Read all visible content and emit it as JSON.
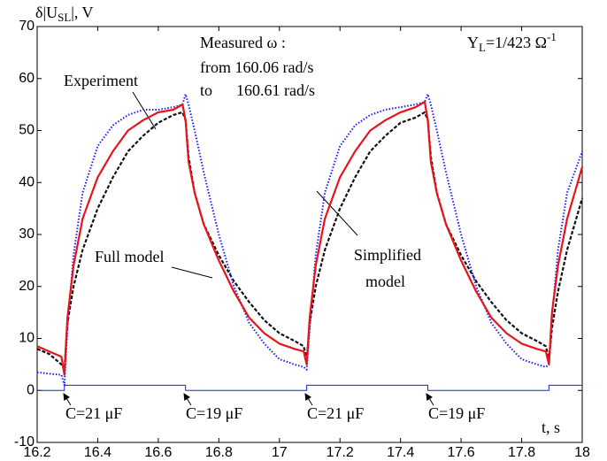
{
  "chart_data": {
    "type": "line",
    "y_label": [
      "δ|U",
      "SL",
      "|, V"
    ],
    "x_label": "t, s",
    "xlim": [
      16.2,
      18
    ],
    "ylim": [
      -10,
      70
    ],
    "xticks": [
      16.2,
      16.4,
      16.6,
      16.8,
      17,
      17.2,
      17.4,
      17.6,
      17.8,
      18
    ],
    "yticks": [
      -10,
      0,
      10,
      20,
      30,
      40,
      50,
      60,
      70
    ],
    "x": [
      16.2,
      16.24,
      16.28,
      16.29,
      16.3,
      16.32,
      16.35,
      16.4,
      16.45,
      16.5,
      16.55,
      16.6,
      16.65,
      16.68,
      16.69,
      16.7,
      16.72,
      16.75,
      16.8,
      16.85,
      16.9,
      16.95,
      17.0,
      17.05,
      17.08,
      17.09,
      17.1,
      17.12,
      17.15,
      17.2,
      17.25,
      17.3,
      17.35,
      17.4,
      17.45,
      17.48,
      17.49,
      17.5,
      17.52,
      17.55,
      17.6,
      17.65,
      17.7,
      17.75,
      17.8,
      17.85,
      17.88,
      17.89,
      17.9,
      17.92,
      17.95,
      18.0
    ],
    "series": [
      {
        "name": "Experiment",
        "color": "#e8141a",
        "style": "solid",
        "values": [
          8.5,
          7.5,
          6.5,
          3,
          14,
          24,
          33,
          41,
          46,
          50,
          52,
          53.5,
          54,
          55,
          52,
          44,
          38,
          32,
          25,
          19,
          14,
          11,
          9,
          8,
          7.5,
          5,
          14,
          24,
          33,
          41,
          46,
          50,
          52,
          53.5,
          54.5,
          55.5,
          52,
          44,
          38,
          32,
          25,
          19,
          14,
          11,
          9,
          8,
          7.5,
          5,
          15,
          24,
          33,
          43
        ]
      },
      {
        "name": "Full model",
        "color": "#1a1aff",
        "style": "dotted",
        "values": [
          3.5,
          3.2,
          3,
          1,
          12,
          26,
          38,
          47,
          51,
          53,
          54,
          54,
          54.5,
          55,
          57,
          55,
          50,
          42,
          30,
          20,
          13,
          9,
          6,
          5,
          4.5,
          4,
          12,
          26,
          38,
          47,
          51,
          53,
          54,
          54.5,
          55,
          55.5,
          57,
          55,
          50,
          42,
          30,
          20,
          13,
          9,
          6,
          5,
          4.5,
          5,
          14,
          27,
          38,
          46
        ]
      },
      {
        "name": "Simplified model",
        "color": "#111111",
        "style": "dashed",
        "values": [
          8,
          7,
          5,
          4,
          13,
          20,
          27,
          35,
          41,
          46,
          49,
          51.5,
          53,
          53.5,
          52,
          45,
          38,
          32,
          26,
          21,
          17,
          13.5,
          11,
          9.5,
          8.5,
          6,
          13,
          20,
          27,
          35,
          41,
          46,
          49,
          51.5,
          52.5,
          53.5,
          52,
          45,
          38,
          32,
          26,
          21,
          17,
          13.5,
          11,
          9.5,
          8.5,
          6,
          12,
          19,
          27,
          37
        ]
      },
      {
        "name": "C",
        "color": "#1a1aff",
        "style": "thin",
        "x": [
          16.2,
          16.29,
          16.29,
          16.69,
          16.69,
          17.09,
          17.09,
          17.49,
          17.49,
          17.89,
          17.89,
          18
        ],
        "values": [
          0,
          0,
          1,
          1,
          0,
          0,
          1,
          1,
          0,
          0,
          1,
          1
        ]
      }
    ],
    "annotations": [
      "Measured ω :",
      "from 160.06 rad/s",
      "to      160.61 rad/s",
      "Experiment",
      "Full model",
      "Simplified",
      "model",
      "C=21 μF",
      "C=19 μF",
      "C=21 μF",
      "C=19 μF"
    ],
    "load_label": [
      "Y",
      "L",
      "=1/423 Ω",
      "-1"
    ]
  }
}
